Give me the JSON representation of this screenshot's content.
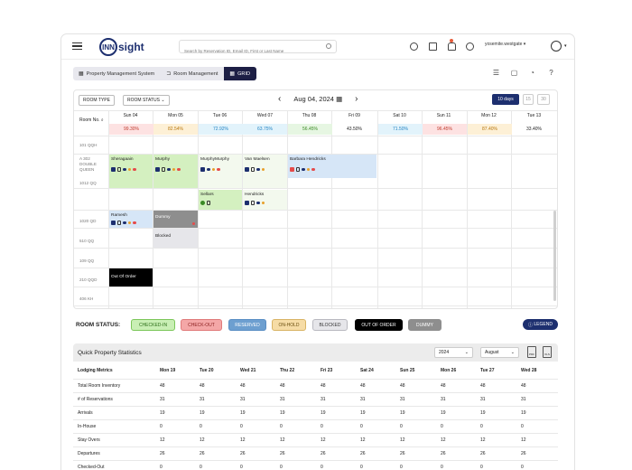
{
  "topbar": {
    "logo_mark": "INN",
    "logo_text": "sight",
    "search_placeholder": "Search by Reservation ID, Email ID, First or Last Name",
    "user_name": "yosemite.westgate"
  },
  "breadcrumb": [
    {
      "label": "Property Management System"
    },
    {
      "label": "Room Management"
    },
    {
      "label": "GRID"
    }
  ],
  "calendar": {
    "room_type_label": "ROOM TYPE",
    "room_status_label": "ROOM STATUS",
    "current_date": "Aug 04, 2024",
    "view_options": [
      "10 days",
      "15",
      "30"
    ],
    "room_no_label": "Room No.",
    "days": [
      {
        "label": "Sun 04",
        "occupancy": "99.30%",
        "color": "#fde2e2"
      },
      {
        "label": "Mon 05",
        "occupancy": "82.54%",
        "color": "#fdf0d6"
      },
      {
        "label": "Tue 06",
        "occupancy": "72.92%",
        "color": "#e2f3fb"
      },
      {
        "label": "Wed 07",
        "occupancy": "63.75%",
        "color": "#e2f3fb"
      },
      {
        "label": "Thu 08",
        "occupancy": "56.45%",
        "color": "#e6f6e2"
      },
      {
        "label": "Fri 09",
        "occupancy": "43.50%",
        "color": "#ffffff"
      },
      {
        "label": "Sat 10",
        "occupancy": "71.50%",
        "color": "#e2f3fb"
      },
      {
        "label": "Sun 11",
        "occupancy": "96.45%",
        "color": "#fde2e2"
      },
      {
        "label": "Mon 12",
        "occupancy": "87.40%",
        "color": "#fdf0d6"
      },
      {
        "label": "Tue 13",
        "occupancy": "33.40%",
        "color": "#ffffff"
      }
    ],
    "rooms": [
      "101 QQH",
      "A 302 DOUBLE QUEEN",
      "1012 QQ",
      "",
      "1020 QD",
      "510 QQ",
      "109 QQ",
      "210 QQD",
      "406 KH"
    ],
    "bookings": [
      {
        "name": "Sheragaain"
      },
      {
        "name": "Murphy"
      },
      {
        "name": "MurphyMurphy"
      },
      {
        "name": "Van Maelsen"
      },
      {
        "name": "Barbara Hendricks"
      },
      {
        "name": "Sellars"
      },
      {
        "name": "Hendricks"
      },
      {
        "name": "Ramesh"
      },
      {
        "name": "Dummy"
      },
      {
        "name": "Blocked"
      },
      {
        "name": "Out Of Order"
      }
    ]
  },
  "room_status": {
    "title": "ROOM STATUS:",
    "items": [
      {
        "label": "CHECKED-IN",
        "bg": "#c9efb5",
        "border": "#7cc75a",
        "color": "#2c6e18"
      },
      {
        "label": "CHECK-OUT",
        "bg": "#f4a7a7",
        "border": "#e07a7a",
        "color": "#8a1d1d"
      },
      {
        "label": "RESERVED",
        "bg": "#6d9fd0",
        "border": "#5a8ec4",
        "color": "#ffffff"
      },
      {
        "label": "ON-HOLD",
        "bg": "#f6dca6",
        "border": "#d9b465",
        "color": "#6b4f10"
      },
      {
        "label": "BLOCKED",
        "bg": "#e6e6ea",
        "border": "#b9b9c0",
        "color": "#333333"
      },
      {
        "label": "OUT OF ORDER",
        "bg": "#000000",
        "border": "#000000",
        "color": "#ffffff"
      },
      {
        "label": "DUMMY",
        "bg": "#8e8e8e",
        "border": "#8e8e8e",
        "color": "#ffffff"
      }
    ],
    "legend_label": "LEGEND"
  },
  "stats": {
    "title": "Quick Property Statistics",
    "year": "2024",
    "month": "August",
    "export_pdf": "PDF",
    "export_xls": "XLS",
    "metrics_label": "Lodging Metrics",
    "columns": [
      "Mon 19",
      "Tue 20",
      "Wed 21",
      "Thu 22",
      "Fri 23",
      "Sat 24",
      "Sun 25",
      "Mon 26",
      "Tue 27",
      "Wed 28"
    ],
    "rows": [
      {
        "label": "Total Room Inventory",
        "values": [
          "48",
          "48",
          "48",
          "48",
          "48",
          "48",
          "48",
          "48",
          "48",
          "48"
        ]
      },
      {
        "label": "# of Reservations",
        "values": [
          "31",
          "31",
          "31",
          "31",
          "31",
          "31",
          "31",
          "31",
          "31",
          "31"
        ]
      },
      {
        "label": "Arrivals",
        "values": [
          "19",
          "19",
          "19",
          "19",
          "19",
          "19",
          "19",
          "19",
          "19",
          "19"
        ]
      },
      {
        "label": "In-House",
        "values": [
          "0",
          "0",
          "0",
          "0",
          "0",
          "0",
          "0",
          "0",
          "0",
          "0"
        ]
      },
      {
        "label": "Stay Overs",
        "values": [
          "12",
          "12",
          "12",
          "12",
          "12",
          "12",
          "12",
          "12",
          "12",
          "12"
        ]
      },
      {
        "label": "Departures",
        "values": [
          "26",
          "26",
          "26",
          "26",
          "26",
          "26",
          "26",
          "26",
          "26",
          "26"
        ]
      },
      {
        "label": "Checked-Out",
        "values": [
          "0",
          "0",
          "0",
          "0",
          "0",
          "0",
          "0",
          "0",
          "0",
          "0"
        ]
      }
    ]
  }
}
